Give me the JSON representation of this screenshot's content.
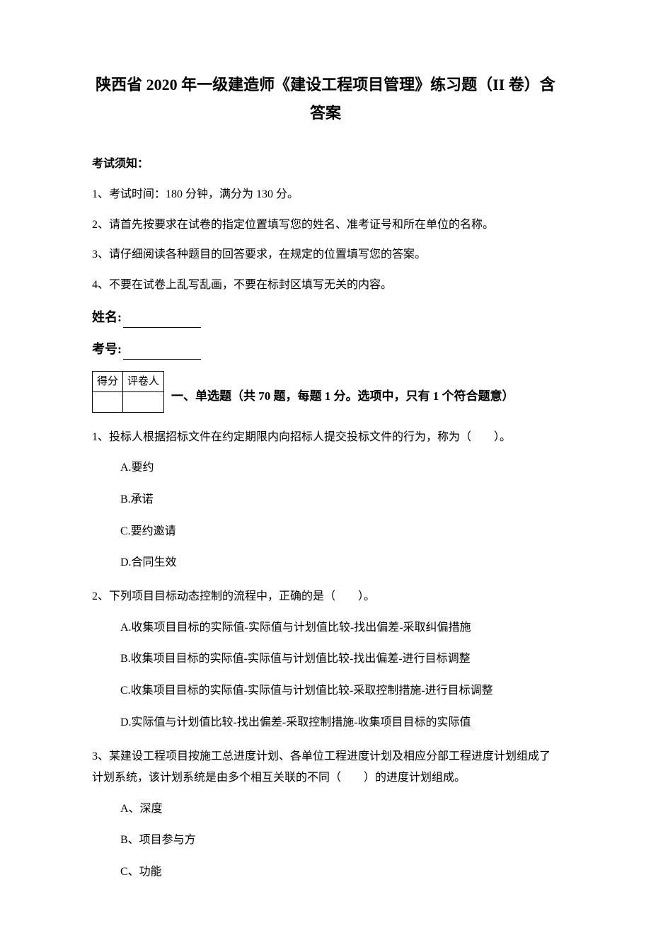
{
  "title": {
    "line1": "陕西省 2020 年一级建造师《建设工程项目管理》练习题（II 卷）含",
    "line2": "答案"
  },
  "instructions": {
    "heading": "考试须知：",
    "items": [
      "1、考试时间：180 分钟，满分为 130 分。",
      "2、请首先按要求在试卷的指定位置填写您的姓名、准考证号和所在单位的名称。",
      "3、请仔细阅读各种题目的回答要求，在规定的位置填写您的答案。",
      "4、不要在试卷上乱写乱画，不要在标封区填写无关的内容。"
    ]
  },
  "name_label": "姓名:",
  "id_label": "考号:",
  "score_table": {
    "headers": [
      "得分",
      "评卷人"
    ]
  },
  "section": {
    "title": "一、单选题（共 70 题，每题 1 分。选项中，只有 1 个符合题意）"
  },
  "questions": [
    {
      "text": "1、投标人根据招标文件在约定期限内向招标人提交投标文件的行为，称为（　　）。",
      "options": [
        "A.要约",
        "B.承诺",
        "C.要约邀请",
        "D.合同生效"
      ]
    },
    {
      "text": "2、下列项目目标动态控制的流程中，正确的是（　　）。",
      "options": [
        "A.收集项目目标的实际值-实际值与计划值比较-找出偏差-采取纠偏措施",
        "B.收集项目目标的实际值-实际值与计划值比较-找出偏差-进行目标调整",
        "C.收集项目目标的实际值-实际值与计划值比较-采取控制措施-进行目标调整",
        "D.实际值与计划值比较-找出偏差-采取控制措施-收集项目目标的实际值"
      ]
    },
    {
      "text": "3、某建设工程项目按施工总进度计划、各单位工程进度计划及相应分部工程进度计划组成了计划系统，该计划系统是由多个相互关联的不同（　　）的进度计划组成。",
      "options": [
        "A、深度",
        "B、项目参与方",
        "C、功能"
      ]
    }
  ]
}
